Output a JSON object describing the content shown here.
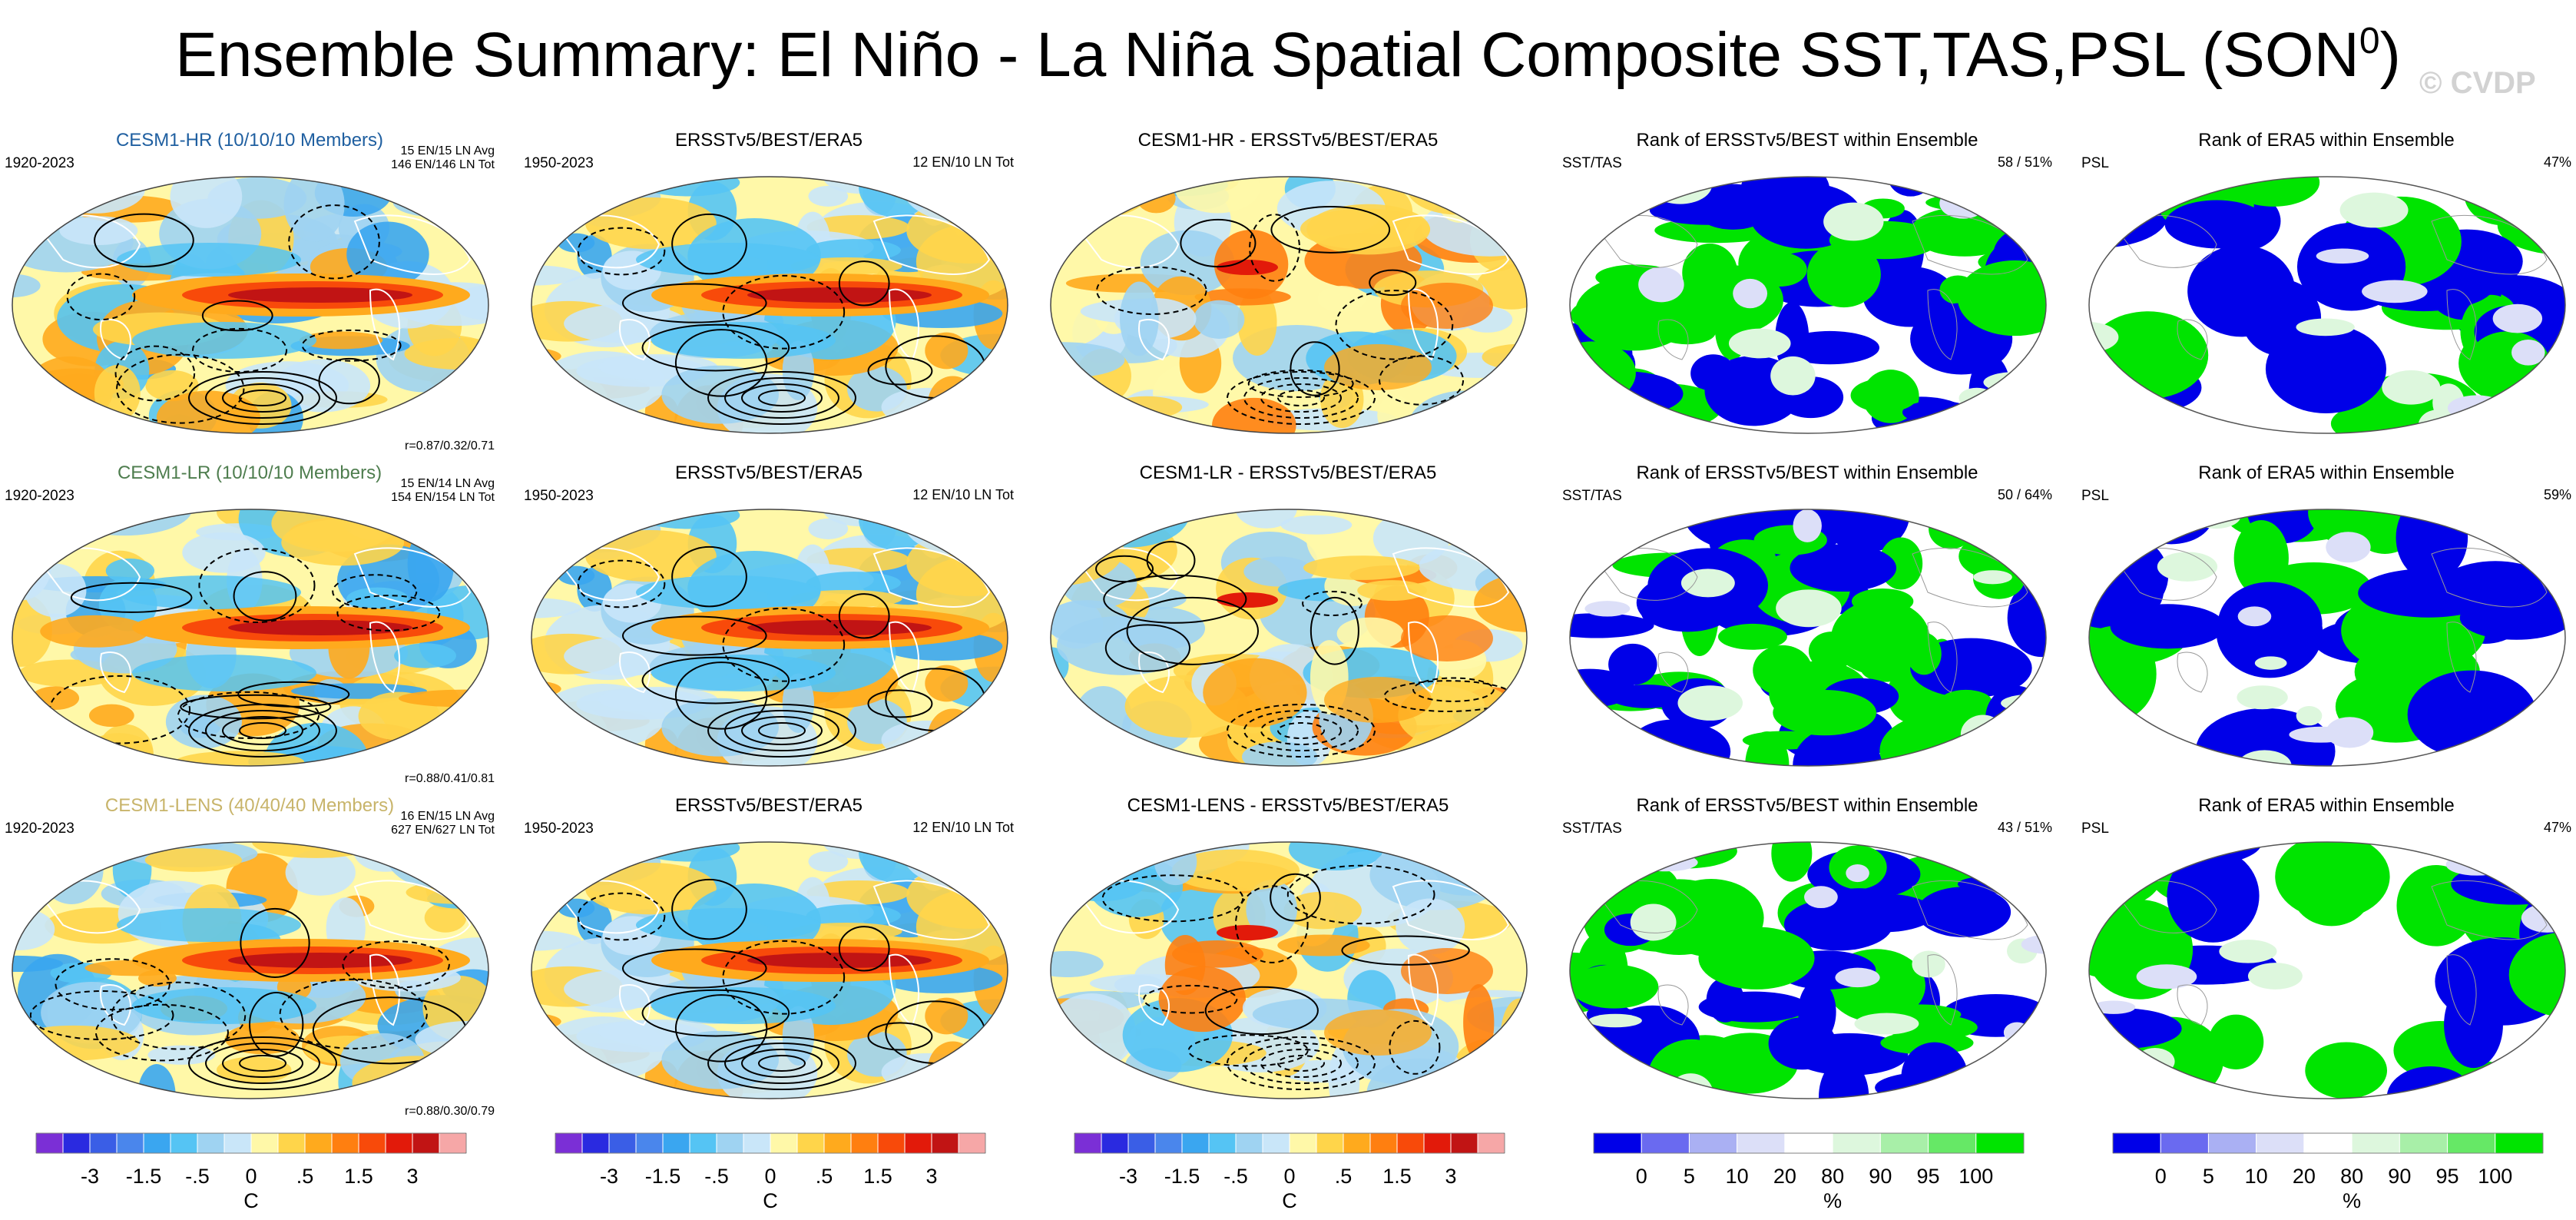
{
  "title": {
    "main": "Ensemble Summary: El Niño - La Niña Spatial Composite SST,TAS,PSL (SON",
    "superscript": "0",
    ")": ")",
    "close": ")"
  },
  "watermark": "© CVDP",
  "rows": [
    {
      "ensemble": {
        "title": "CESM1-HR (10/10/10 Members)",
        "years": "1920-2023",
        "stat1": "15 EN/15 LN Avg",
        "stat2": "146 EN/146 LN Tot",
        "corr": "r=0.87/0.32/0.71"
      },
      "obs": {
        "title": "ERSSTv5/BEST/ERA5",
        "years": "1950-2023",
        "stat": "12 EN/10 LN Tot"
      },
      "diff": {
        "title": "CESM1-HR - ERSSTv5/BEST/ERA5"
      },
      "rank_sst": {
        "title": "Rank of ERSSTv5/BEST within Ensemble",
        "label": "SST/TAS",
        "stat": "58 /  51%"
      },
      "rank_psl": {
        "title": "Rank of ERA5 within Ensemble",
        "label": "PSL",
        "stat": "47%"
      }
    },
    {
      "ensemble": {
        "title": "CESM1-LR (10/10/10 Members)",
        "years": "1920-2023",
        "stat1": "15 EN/14 LN Avg",
        "stat2": "154 EN/154 LN Tot",
        "corr": "r=0.88/0.41/0.81"
      },
      "obs": {
        "title": "ERSSTv5/BEST/ERA5",
        "years": "1950-2023",
        "stat": "12 EN/10 LN Tot"
      },
      "diff": {
        "title": "CESM1-LR - ERSSTv5/BEST/ERA5"
      },
      "rank_sst": {
        "title": "Rank of ERSSTv5/BEST within Ensemble",
        "label": "SST/TAS",
        "stat": "50 /  64%"
      },
      "rank_psl": {
        "title": "Rank of ERA5 within Ensemble",
        "label": "PSL",
        "stat": "59%"
      }
    },
    {
      "ensemble": {
        "title": "CESM1-LENS (40/40/40 Members)",
        "years": "1920-2023",
        "stat1": "16 EN/15 LN Avg",
        "stat2": "627 EN/627 LN Tot",
        "corr": "r=0.88/0.30/0.79"
      },
      "obs": {
        "title": "ERSSTv5/BEST/ERA5",
        "years": "1950-2023",
        "stat": "12 EN/10 LN Tot"
      },
      "diff": {
        "title": "CESM1-LENS - ERSSTv5/BEST/ERA5"
      },
      "rank_sst": {
        "title": "Rank of ERSSTv5/BEST within Ensemble",
        "label": "SST/TAS",
        "stat": "43 /  51%"
      },
      "rank_psl": {
        "title": "Rank of ERA5 within Ensemble",
        "label": "PSL",
        "stat": "47%"
      }
    }
  ],
  "colorbars": {
    "temp": {
      "unit": "C",
      "ticks": [
        "-3",
        "-1.5",
        "-.5",
        "0",
        ".5",
        "1.5",
        "3"
      ],
      "colors": [
        "#7b2fd6",
        "#2a2ae0",
        "#3a5ee6",
        "#4a86ec",
        "#3aa6f0",
        "#55c4f4",
        "#9fd3f2",
        "#c9e6f9",
        "#fff8a8",
        "#ffd54a",
        "#ffaa1d",
        "#ff7f10",
        "#f84a0a",
        "#e21a0a",
        "#c11414",
        "#f6a7a7"
      ]
    },
    "rank": {
      "unit": "%",
      "ticks": [
        "0",
        "5",
        "10",
        "20",
        "80",
        "90",
        "95",
        "100"
      ],
      "colors": [
        "#0000e8",
        "#6a6af0",
        "#aab0f3",
        "#dcdff8",
        "#ffffff",
        "#ddf7dd",
        "#a8efa8",
        "#66e866",
        "#00e400"
      ]
    }
  },
  "colors": {
    "mapOutline": "#333333",
    "contour": "#000000",
    "rankLow": "#0000e8",
    "rankHigh": "#00e400"
  },
  "chart_data": [
    {
      "type": "heatmap",
      "panel": "ensemble-mean composite (SST/TAS shaded, PSL contours)",
      "title": "CESM1-HR (10/10/10 Members)",
      "colorbar_unit": "C",
      "pattern_correlation": [
        0.87,
        0.32,
        0.71
      ]
    },
    {
      "type": "heatmap",
      "panel": "observed composite",
      "title": "ERSSTv5/BEST/ERA5"
    },
    {
      "type": "heatmap",
      "panel": "difference",
      "title": "CESM1-HR - ERSSTv5/BEST/ERA5"
    },
    {
      "type": "heatmap",
      "panel": "rank SST/TAS",
      "title": "Rank of ERSSTv5/BEST within Ensemble",
      "percent_values": [
        58,
        51
      ],
      "colorbar_unit": "%"
    },
    {
      "type": "heatmap",
      "panel": "rank PSL",
      "title": "Rank of ERA5 within Ensemble",
      "percent_values": [
        47
      ]
    },
    {
      "type": "heatmap",
      "panel": "ensemble-mean composite",
      "title": "CESM1-LR (10/10/10 Members)",
      "pattern_correlation": [
        0.88,
        0.41,
        0.81
      ]
    },
    {
      "type": "heatmap",
      "panel": "rank SST/TAS",
      "title": "Rank of ERSSTv5/BEST within Ensemble",
      "percent_values": [
        50,
        64
      ]
    },
    {
      "type": "heatmap",
      "panel": "rank PSL",
      "title": "Rank of ERA5 within Ensemble",
      "percent_values": [
        59
      ]
    },
    {
      "type": "heatmap",
      "panel": "ensemble-mean composite",
      "title": "CESM1-LENS (40/40/40 Members)",
      "pattern_correlation": [
        0.88,
        0.3,
        0.79
      ]
    },
    {
      "type": "heatmap",
      "panel": "rank SST/TAS",
      "title": "Rank of ERSSTv5/BEST within Ensemble",
      "percent_values": [
        43,
        51
      ]
    },
    {
      "type": "heatmap",
      "panel": "rank PSL",
      "title": "Rank of ERA5 within Ensemble",
      "percent_values": [
        47
      ]
    }
  ]
}
